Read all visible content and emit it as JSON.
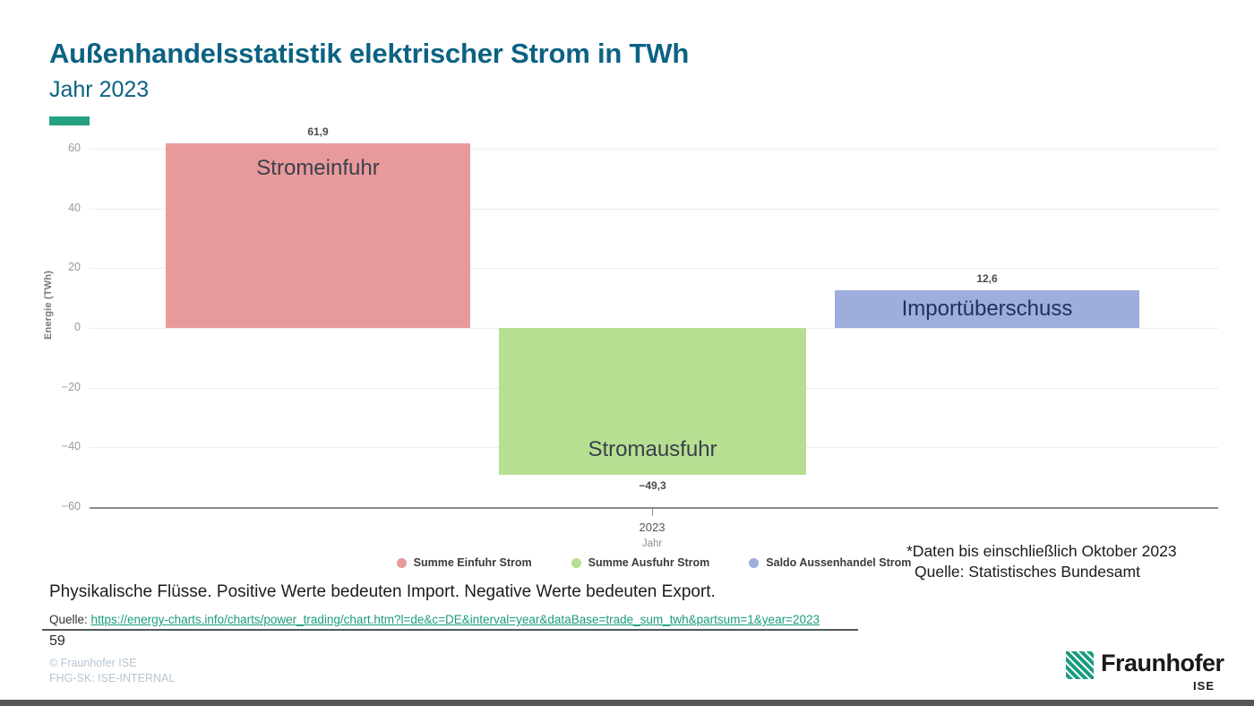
{
  "slide": {
    "title": "Außenhandelsstatistik elektrischer Strom in TWh",
    "subtitle": "Jahr 2023",
    "page_number": "59",
    "footer_copyright": "© Fraunhofer ISE",
    "footer_classification": "FHG-SK: ISE-INTERNAL",
    "logo_text": "Fraunhofer",
    "logo_sub": "ISE",
    "accent_color": "#23a180",
    "title_color": "#0c6283"
  },
  "chart_data": {
    "type": "bar",
    "title": "",
    "xlabel": "Jahr",
    "ylabel": "Energie (TWh)",
    "categories": [
      "2023"
    ],
    "x_tick_label": "2023",
    "ylim": [
      -60,
      60
    ],
    "yticks": [
      60,
      40,
      20,
      0,
      -20,
      -40,
      -60
    ],
    "ytick_labels": [
      "60",
      "40",
      "20",
      "0",
      "−20",
      "−40",
      "−60"
    ],
    "grid": true,
    "legend_position": "bottom",
    "series": [
      {
        "name": "Summe Einfuhr Strom",
        "bar_label": "Stromeinfuhr",
        "value": 61.9,
        "value_label": "61,9",
        "color": "#e89a9b",
        "label_color": "#39404d"
      },
      {
        "name": "Summe Ausfuhr Strom",
        "bar_label": "Stromausfuhr",
        "value": -49.3,
        "value_label": "−49,3",
        "color": "#b7df92",
        "label_color": "#39404d"
      },
      {
        "name": "Saldo Aussenhandel Strom",
        "bar_label": "Importüberschuss",
        "value": 12.6,
        "value_label": "12,6",
        "color": "#9fadde",
        "label_color": "#1e3160"
      }
    ]
  },
  "annotations": {
    "data_note_line1": "*Daten bis einschließlich Oktober 2023",
    "data_note_line2": "Quelle: Statistisches Bundesamt",
    "description": "Physikalische Flüsse. Positive Werte bedeuten Import. Negative Werte bedeuten Export.",
    "source_label": "Quelle: ",
    "source_url": "https://energy-charts.info/charts/power_trading/chart.htm?l=de&c=DE&interval=year&dataBase=trade_sum_twh&partsum=1&year=2023"
  }
}
